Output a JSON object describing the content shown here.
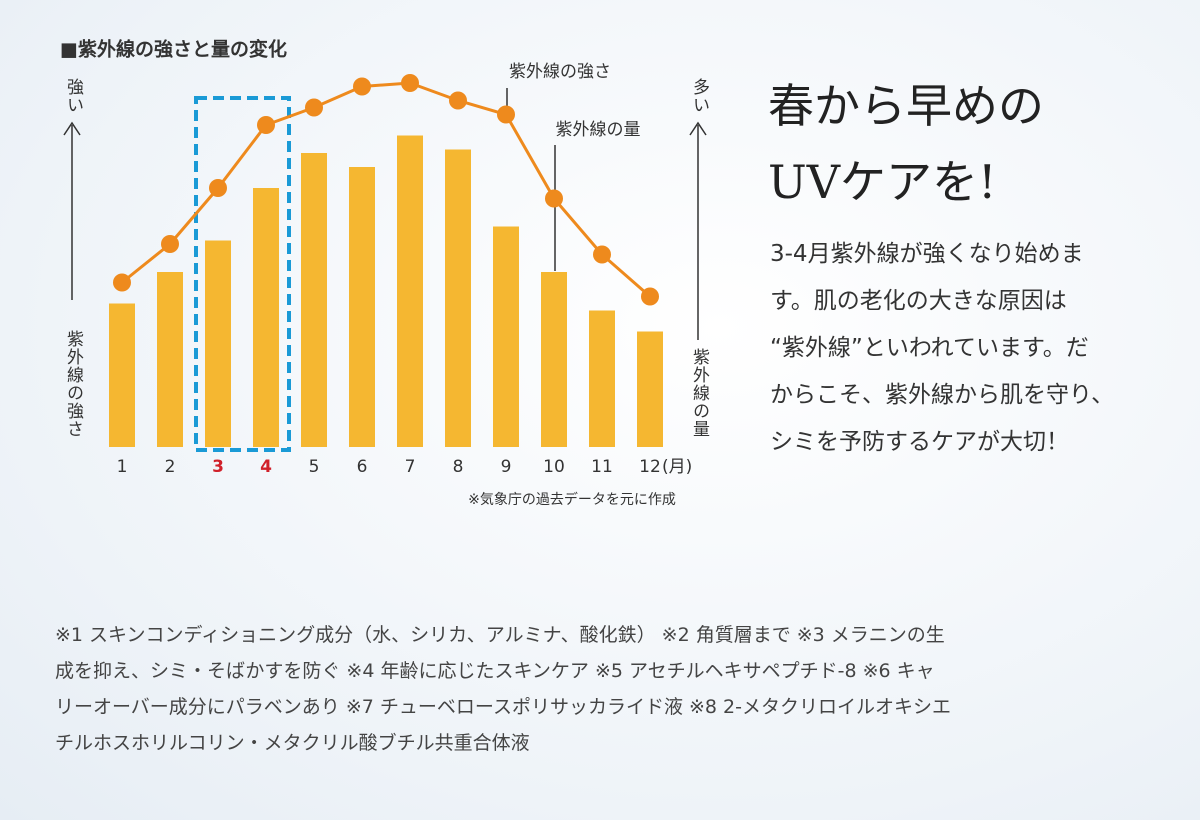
{
  "chart_data": {
    "type": "bar-line",
    "title": "■紫外線の強さと量の変化",
    "categories": [
      "1",
      "2",
      "3",
      "4",
      "5",
      "6",
      "7",
      "8",
      "9",
      "10",
      "11",
      "12"
    ],
    "x_unit": "(月)",
    "series": [
      {
        "name": "紫外線の量",
        "type": "bar",
        "color": "#f5b731",
        "values": [
          41,
          50,
          59,
          74,
          84,
          80,
          89,
          85,
          63,
          50,
          39,
          33
        ]
      },
      {
        "name": "紫外線の強さ",
        "type": "line",
        "color": "#ee8a1d",
        "values": [
          47,
          58,
          74,
          92,
          97,
          103,
          104,
          99,
          95,
          71,
          55,
          43
        ]
      }
    ],
    "ylim": [
      0,
      110
    ],
    "left_axis": {
      "top": "強い",
      "bottom": "紫外線の強さ"
    },
    "right_axis": {
      "top": "多い",
      "bottom": "紫外線の量"
    },
    "highlight_index": [
      2,
      3
    ],
    "highlight_color": "#1a9ad6",
    "highlight_label_color": "#d0202a",
    "note": "※気象庁の過去データを元に作成"
  },
  "heading": [
    "春から早めの",
    "UVケアを!"
  ],
  "body": [
    "3-4月紫外線が強くなり始めま",
    "す。肌の老化の大きな原因は",
    "“紫外線”といわれています。だ",
    "からこそ、紫外線から肌を守り、",
    "シミを予防するケアが大切！"
  ],
  "footnotes": [
    "※1 スキンコンディショニング成分（水、シリカ、アルミナ、酸化鉄） ※2 角質層まで ※3 メラニンの生",
    "成を抑え、シミ・そばかすを防ぐ ※4 年齢に応じたスキンケア ※5 アセチルヘキサペプチド-8 ※6 キャ",
    "リーオーバー成分にパラベンあり ※7 チューベロースポリサッカライド液 ※8 2-メタクリロイルオキシエ",
    "チルホスホリルコリン・メタクリル酸ブチル共重合体液"
  ]
}
